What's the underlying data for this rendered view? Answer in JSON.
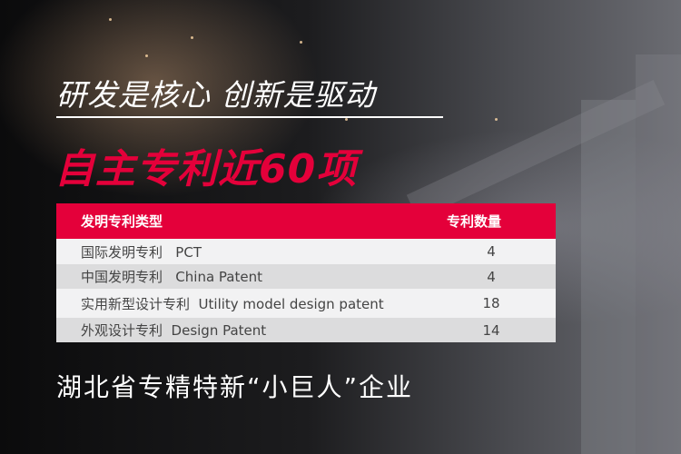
{
  "slogan": "研发是核心 创新是驱动",
  "headline": "自主专利近60项",
  "table": {
    "headers": [
      "发明专利类型",
      "专利数量"
    ],
    "rows": [
      {
        "type": "国际发明专利   PCT",
        "count": "4"
      },
      {
        "type": "中国发明专利   China Patent",
        "count": "4"
      },
      {
        "type": "实用新型设计专利  Utility model design patent",
        "count": "18"
      },
      {
        "type": "外观设计专利  Design Patent",
        "count": "14"
      }
    ]
  },
  "footer": "湖北省专精特新“小巨人”企业",
  "colors": {
    "accent": "#e4003a",
    "text": "#ffffff"
  }
}
